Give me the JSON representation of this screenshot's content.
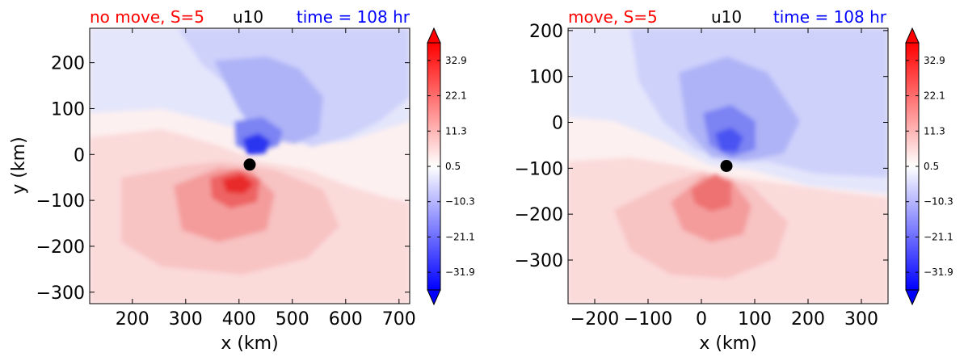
{
  "chart_data": [
    {
      "type": "heatmap",
      "title_left": "no move, S=5",
      "title_center": "u10",
      "title_right": "time = 108 hr",
      "xlabel": "x (km)",
      "ylabel": "y (km)",
      "xlim": [
        120,
        720
      ],
      "ylim": [
        -325,
        275
      ],
      "xticks": [
        200,
        300,
        400,
        500,
        600,
        700
      ],
      "yticks": [
        200,
        100,
        0,
        -100,
        -200,
        -300
      ],
      "center": {
        "x": 420,
        "y": -22
      },
      "colorbar": {
        "ticks": [
          "32.9",
          "22.1",
          "11.3",
          "0.5",
          "−10.3",
          "−21.1",
          "−31.9"
        ],
        "min": -37.3,
        "max": 38.3,
        "extend": "both"
      }
    },
    {
      "type": "heatmap",
      "title_left": "move, S=5",
      "title_center": "u10",
      "title_right": "time = 108 hr",
      "xlabel": "x (km)",
      "ylabel": "",
      "xlim": [
        -250,
        350
      ],
      "ylim": [
        -395,
        205
      ],
      "xticks": [
        -200,
        -100,
        0,
        100,
        200,
        300
      ],
      "yticks": [
        200,
        100,
        0,
        -100,
        -200,
        -300
      ],
      "center": {
        "x": 47,
        "y": -95
      },
      "colorbar": {
        "ticks": [
          "32.9",
          "22.1",
          "11.3",
          "0.5",
          "−10.3",
          "−21.1",
          "−31.9"
        ],
        "min": -37.3,
        "max": 38.3,
        "extend": "both"
      }
    }
  ],
  "colors": {
    "title_left": "#ff0000",
    "title_center": "#000000",
    "title_right": "#0000ff",
    "colormap": [
      "#0000ff",
      "#ffffff",
      "#ff0000"
    ],
    "center_marker": "#000000"
  }
}
